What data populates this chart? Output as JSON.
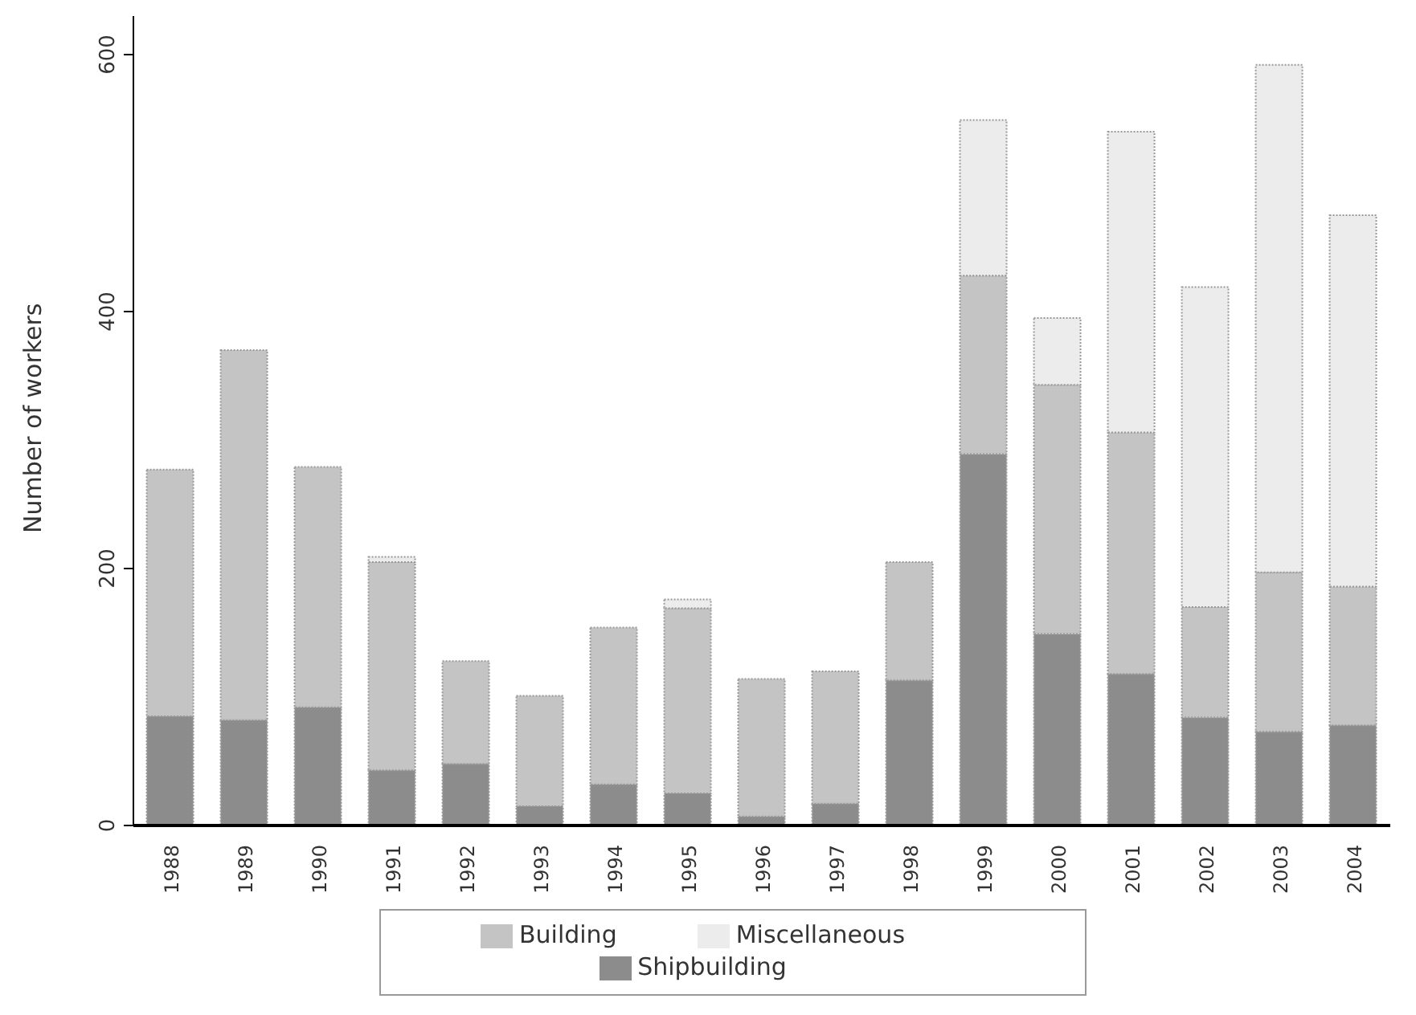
{
  "chart_data": {
    "type": "bar",
    "stacked": true,
    "ylabel": "Number of workers",
    "categories": [
      "1988",
      "1989",
      "1990",
      "1991",
      "1992",
      "1993",
      "1994",
      "1995",
      "1996",
      "1997",
      "1998",
      "1999",
      "2000",
      "2001",
      "2002",
      "2003",
      "2004"
    ],
    "series": [
      {
        "name": "Shipbuilding",
        "color": "#8c8c8c",
        "values": [
          85,
          82,
          92,
          43,
          48,
          15,
          32,
          25,
          7,
          17,
          113,
          289,
          149,
          118,
          84,
          73,
          78
        ]
      },
      {
        "name": "Building",
        "color": "#c4c4c4",
        "values": [
          192,
          288,
          187,
          162,
          80,
          86,
          122,
          144,
          107,
          103,
          92,
          139,
          194,
          188,
          86,
          124,
          108
        ]
      },
      {
        "name": "Miscellaneous",
        "color": "#ececec",
        "values": [
          0,
          0,
          0,
          4,
          0,
          0,
          0,
          7,
          0,
          0,
          0,
          121,
          52,
          234,
          249,
          395,
          289
        ]
      }
    ],
    "ylim": [
      0,
      630
    ],
    "yticks": [
      0,
      200,
      400,
      600
    ],
    "legend": "bottom"
  }
}
